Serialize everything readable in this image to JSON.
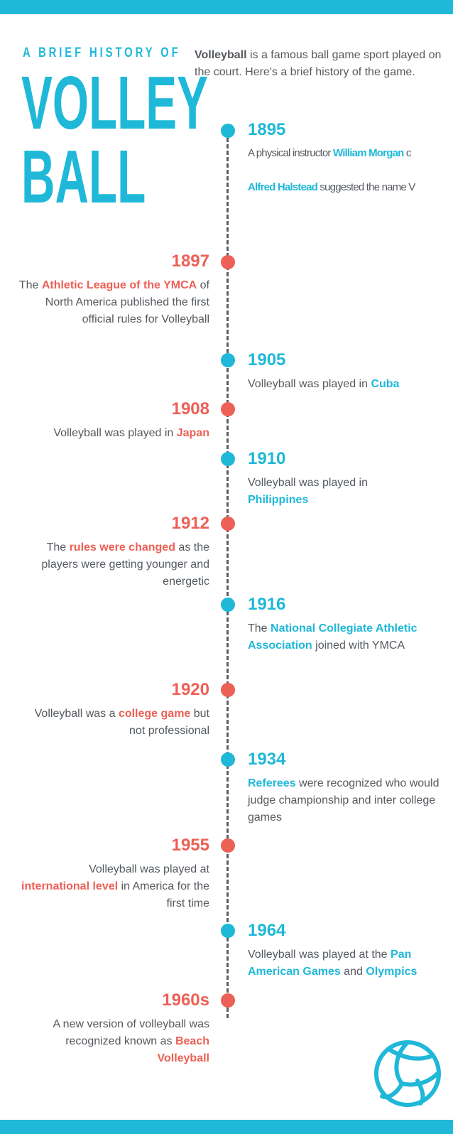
{
  "colors": {
    "accent": "#1fb8d8",
    "secondary": "#ec6056",
    "text": "#555a5f"
  },
  "header": {
    "kicker": "A BRIEF HISTORY OF",
    "title_line1": "VOLLEY",
    "title_line2": "BALL",
    "intro_bold": "Volleyball",
    "intro_rest": " is a famous ball game sport played on the court. Here's a brief history of the game."
  },
  "timeline": [
    {
      "year": "1895",
      "side": "right",
      "color": "blue",
      "l1_pre": "A physical instructor ",
      "l1_hl": "William Morgan",
      "l1_post": " c",
      "l2_hl": "Alfred Halstead",
      "l2_post": " suggested the name V"
    },
    {
      "year": "1897",
      "side": "left",
      "color": "red",
      "pre": "The ",
      "hl": "Athletic League of the YMCA",
      "post": " of North America published the first official rules for Volleyball"
    },
    {
      "year": "1905",
      "side": "right",
      "color": "blue",
      "pre": "Volleyball was played in ",
      "hl": "Cuba",
      "post": ""
    },
    {
      "year": "1908",
      "side": "left",
      "color": "red",
      "pre": "Volleyball was played in ",
      "hl": "Japan",
      "post": ""
    },
    {
      "year": "1910",
      "side": "right",
      "color": "blue",
      "pre": "Volleyball was played in ",
      "hl": "Philippines",
      "post": ""
    },
    {
      "year": "1912",
      "side": "left",
      "color": "red",
      "pre": "The ",
      "hl": "rules were changed",
      "post": " as the players were getting younger and energetic"
    },
    {
      "year": "1916",
      "side": "right",
      "color": "blue",
      "pre": "The ",
      "hl": "National Collegiate Athletic Association",
      "post": " joined with YMCA"
    },
    {
      "year": "1920",
      "side": "left",
      "color": "red",
      "pre": "Volleyball was a ",
      "hl": "college game",
      "post": " but not professional"
    },
    {
      "year": "1934",
      "side": "right",
      "color": "blue",
      "pre": "",
      "hl": "Referees",
      "post": " were recognized who would judge championship and inter college games"
    },
    {
      "year": "1955",
      "side": "left",
      "color": "red",
      "pre": "Volleyball was played at ",
      "hl": "international level",
      "post": " in America for the first time"
    },
    {
      "year": "1964",
      "side": "right",
      "color": "blue",
      "pre": "Volleyball was played at the ",
      "hl": "Pan American Games",
      "mid": " and ",
      "hl2": "Olympics",
      "post": ""
    },
    {
      "year": "1960s",
      "side": "left",
      "color": "red",
      "pre": "A new version of volleyball was recognized known as ",
      "hl": "Beach Volleyball",
      "post": ""
    }
  ],
  "footer": {
    "logo_icon": "volleyball-icon"
  }
}
